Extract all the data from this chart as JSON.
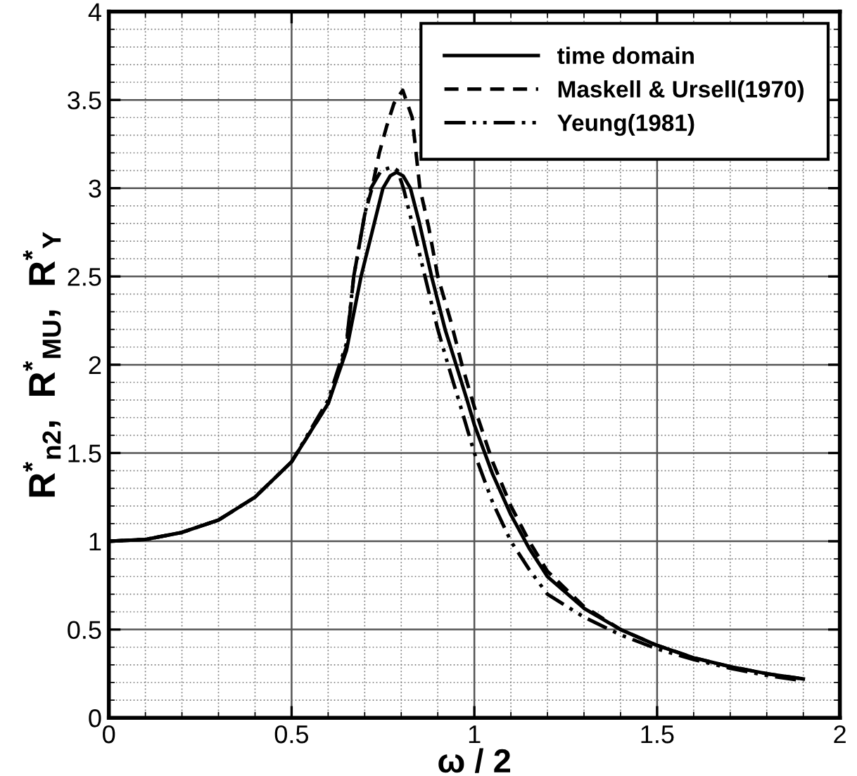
{
  "chart_data": {
    "type": "line",
    "xlabel": "ω / 2",
    "ylabel": "R$^{*}$$_{n2}$,  R$^{*}$$_{MU}$,  R$^{*}$$_{Y}$",
    "xlim": [
      0,
      2
    ],
    "ylim": [
      0,
      4
    ],
    "xticks": [
      0,
      0.5,
      1,
      1.5,
      2
    ],
    "yticks": [
      0,
      0.5,
      1,
      1.5,
      2,
      2.5,
      3,
      3.5,
      4
    ],
    "grid": true,
    "legend": "top right",
    "marker": "none",
    "series": [
      {
        "name": "time domain",
        "color": "#000000",
        "line_style": "solid",
        "x": [
          0,
          0.1,
          0.2,
          0.3,
          0.4,
          0.5,
          0.6,
          0.65,
          0.69,
          0.72,
          0.75,
          0.77,
          0.787,
          0.805,
          0.825,
          0.85,
          0.883,
          0.92,
          0.95,
          0.98,
          1.0,
          1.05,
          1.1,
          1.15,
          1.2,
          1.3,
          1.4,
          1.5,
          1.6,
          1.7,
          1.8,
          1.9
        ],
        "values": [
          1,
          1.01,
          1.05,
          1.12,
          1.25,
          1.45,
          1.78,
          2.08,
          2.5,
          2.75,
          3.0,
          3.07,
          3.09,
          3.07,
          3.0,
          2.8,
          2.5,
          2.2,
          2.0,
          1.8,
          1.66,
          1.38,
          1.15,
          0.96,
          0.8,
          0.62,
          0.5,
          0.41,
          0.34,
          0.29,
          0.25,
          0.22
        ]
      },
      {
        "name": "Maskell & Ursell(1970)",
        "color": "#000000",
        "line_style": "dashed",
        "x": [
          0,
          0.1,
          0.2,
          0.3,
          0.4,
          0.5,
          0.6,
          0.65,
          0.67,
          0.7,
          0.72,
          0.74,
          0.76,
          0.78,
          0.804,
          0.83,
          0.851,
          0.875,
          0.9,
          0.935,
          0.966,
          1.0,
          1.05,
          1.1,
          1.15,
          1.2,
          1.3,
          1.4,
          1.5,
          1.6,
          1.7,
          1.8,
          1.9
        ],
        "values": [
          1,
          1.01,
          1.05,
          1.12,
          1.25,
          1.45,
          1.78,
          2.1,
          2.5,
          2.85,
          3.0,
          3.2,
          3.35,
          3.48,
          3.555,
          3.4,
          3.0,
          2.78,
          2.5,
          2.25,
          2.0,
          1.76,
          1.45,
          1.2,
          1.0,
          0.83,
          0.63,
          0.5,
          0.41,
          0.34,
          0.29,
          0.25,
          0.22
        ]
      },
      {
        "name": "Yeung(1981)",
        "color": "#000000",
        "line_style": "dashdotdot",
        "x": [
          0,
          0.1,
          0.2,
          0.3,
          0.4,
          0.5,
          0.6,
          0.65,
          0.67,
          0.7,
          0.717,
          0.745,
          0.775,
          0.79,
          0.806,
          0.83,
          0.865,
          0.9,
          0.928,
          0.96,
          1.0,
          1.05,
          1.1,
          1.15,
          1.2,
          1.3,
          1.4,
          1.5,
          1.6,
          1.7,
          1.8,
          1.9
        ],
        "values": [
          1,
          1.01,
          1.05,
          1.12,
          1.25,
          1.45,
          1.8,
          2.12,
          2.5,
          2.85,
          3.0,
          3.1,
          3.12,
          3.1,
          3.0,
          2.8,
          2.5,
          2.2,
          2.0,
          1.78,
          1.5,
          1.22,
          1.0,
          0.84,
          0.7,
          0.57,
          0.47,
          0.39,
          0.33,
          0.28,
          0.24,
          0.21
        ]
      }
    ]
  }
}
